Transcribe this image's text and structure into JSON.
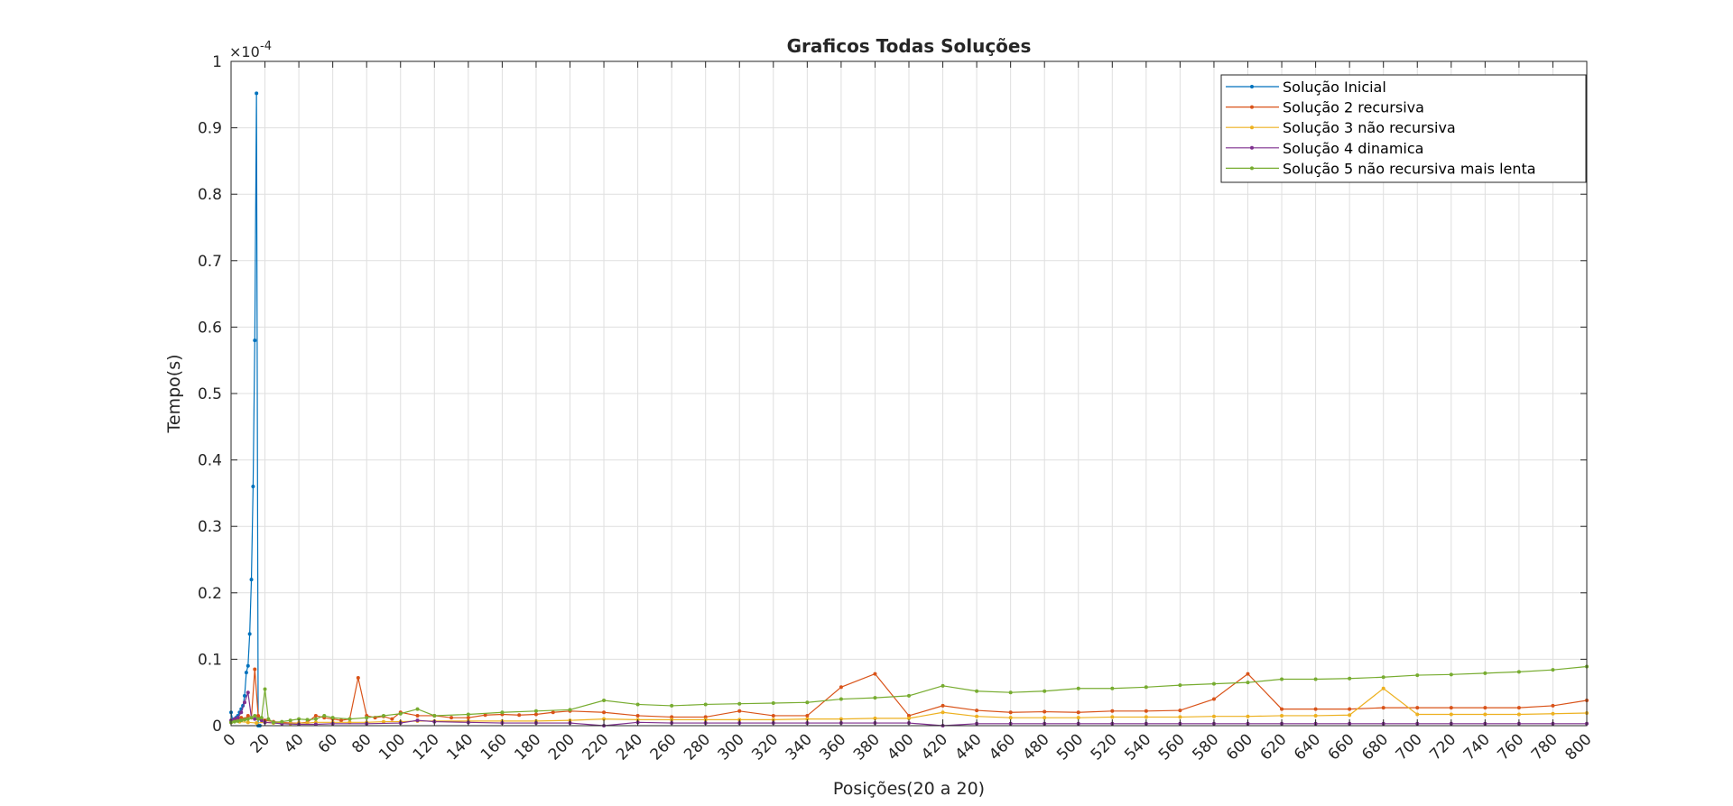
{
  "chart_data": {
    "type": "line",
    "title": "Graficos Todas Soluções",
    "xlabel": "Posições(20 a 20)",
    "ylabel": "Tempo(s)",
    "y_exponent_label": "×10",
    "y_exponent_power": "-4",
    "xlim": [
      0,
      800
    ],
    "ylim": [
      0,
      1
    ],
    "grid": true,
    "legend_position": "top-right",
    "x_ticks": [
      0,
      20,
      40,
      60,
      80,
      100,
      120,
      140,
      160,
      180,
      200,
      220,
      240,
      260,
      280,
      300,
      320,
      340,
      360,
      380,
      400,
      420,
      440,
      460,
      480,
      500,
      520,
      540,
      560,
      580,
      600,
      620,
      640,
      660,
      680,
      700,
      720,
      740,
      760,
      780,
      800
    ],
    "y_ticks": [
      0,
      0.1,
      0.2,
      0.3,
      0.4,
      0.5,
      0.6,
      0.7,
      0.8,
      0.9,
      1
    ],
    "y_tick_labels": [
      "0",
      "0.1",
      "0.2",
      "0.3",
      "0.4",
      "0.5",
      "0.6",
      "0.7",
      "0.8",
      "0.9",
      "1"
    ],
    "series": [
      {
        "name": "Solução Inicial",
        "color": "#0072BD",
        "x": [
          0,
          1,
          2,
          3,
          4,
          5,
          6,
          7,
          8,
          9,
          10,
          11,
          12,
          13,
          14,
          15,
          16,
          17
        ],
        "y": [
          0.02,
          0.008,
          0.01,
          0.012,
          0.015,
          0.02,
          0.025,
          0.03,
          0.045,
          0.08,
          0.09,
          0.138,
          0.22,
          0.36,
          0.58,
          0.952,
          0,
          0
        ]
      },
      {
        "name": "Solução 2 recursiva",
        "color": "#D95319",
        "x": [
          0,
          2,
          4,
          6,
          8,
          10,
          12,
          14,
          16,
          18,
          20,
          25,
          30,
          35,
          40,
          45,
          50,
          55,
          60,
          65,
          70,
          75,
          80,
          85,
          90,
          95,
          100,
          110,
          120,
          130,
          140,
          150,
          160,
          170,
          180,
          190,
          200,
          220,
          240,
          260,
          280,
          300,
          320,
          340,
          360,
          380,
          400,
          420,
          440,
          460,
          480,
          500,
          520,
          540,
          560,
          580,
          600,
          620,
          640,
          660,
          680,
          700,
          720,
          740,
          760,
          780,
          800
        ],
        "y": [
          0.005,
          0.008,
          0.01,
          0.012,
          0.01,
          0.015,
          0.012,
          0.085,
          0.015,
          0.01,
          0.008,
          0.006,
          0.005,
          0.004,
          0.004,
          0.005,
          0.015,
          0.012,
          0.01,
          0.008,
          0.01,
          0.072,
          0.015,
          0.012,
          0.014,
          0.01,
          0.02,
          0.015,
          0.015,
          0.012,
          0.012,
          0.016,
          0.017,
          0.016,
          0.017,
          0.02,
          0.022,
          0.02,
          0.015,
          0.013,
          0.013,
          0.022,
          0.015,
          0.015,
          0.058,
          0.078,
          0.015,
          0.03,
          0.023,
          0.02,
          0.021,
          0.02,
          0.022,
          0.022,
          0.023,
          0.04,
          0.078,
          0.025,
          0.025,
          0.025,
          0.027,
          0.027,
          0.027,
          0.027,
          0.027,
          0.03,
          0.038
        ]
      },
      {
        "name": "Solução 3 não recursiva",
        "color": "#EDB120",
        "x": [
          0,
          5,
          10,
          15,
          20,
          25,
          30,
          35,
          40,
          45,
          50,
          60,
          70,
          80,
          90,
          100,
          110,
          120,
          140,
          160,
          180,
          200,
          220,
          240,
          260,
          280,
          300,
          320,
          340,
          360,
          380,
          400,
          420,
          440,
          460,
          480,
          500,
          520,
          540,
          560,
          580,
          600,
          620,
          640,
          660,
          680,
          700,
          720,
          740,
          760,
          780,
          800
        ],
        "y": [
          0.005,
          0.006,
          0.005,
          0.004,
          0.005,
          0.004,
          0.004,
          0.003,
          0.004,
          0.004,
          0.005,
          0.005,
          0.005,
          0.005,
          0.006,
          0.006,
          0.007,
          0.007,
          0.007,
          0.007,
          0.007,
          0.008,
          0.01,
          0.009,
          0.009,
          0.009,
          0.009,
          0.009,
          0.01,
          0.01,
          0.011,
          0.011,
          0.02,
          0.014,
          0.012,
          0.012,
          0.012,
          0.013,
          0.013,
          0.013,
          0.014,
          0.014,
          0.015,
          0.015,
          0.016,
          0.056,
          0.017,
          0.017,
          0.017,
          0.017,
          0.018,
          0.019
        ]
      },
      {
        "name": "Solução 4 dinamica",
        "color": "#7E2F8E",
        "x": [
          0,
          2,
          4,
          6,
          8,
          10,
          12,
          14,
          16,
          18,
          20,
          30,
          40,
          50,
          60,
          80,
          100,
          110,
          120,
          140,
          160,
          180,
          200,
          220,
          240,
          260,
          280,
          300,
          320,
          340,
          360,
          380,
          400,
          420,
          440,
          460,
          480,
          500,
          520,
          540,
          560,
          580,
          600,
          620,
          640,
          660,
          680,
          700,
          720,
          740,
          760,
          780,
          800
        ],
        "y": [
          0.008,
          0.01,
          0.012,
          0.02,
          0.035,
          0.05,
          0.012,
          0.01,
          0.01,
          0.008,
          0.005,
          0.003,
          0.002,
          0.002,
          0.003,
          0.003,
          0.004,
          0.008,
          0.006,
          0.005,
          0.004,
          0.004,
          0.004,
          0,
          0.005,
          0.004,
          0.004,
          0.004,
          0.004,
          0.004,
          0.004,
          0.004,
          0.004,
          0,
          0.003,
          0.003,
          0.003,
          0.003,
          0.003,
          0.003,
          0.003,
          0.003,
          0.003,
          0.003,
          0.003,
          0.003,
          0.003,
          0.003,
          0.003,
          0.003,
          0.003,
          0.003,
          0.003
        ]
      },
      {
        "name": "Solução 5 não recursiva mais lenta",
        "color": "#77AC30",
        "x": [
          0,
          2,
          4,
          6,
          8,
          10,
          12,
          14,
          16,
          18,
          20,
          22,
          25,
          30,
          35,
          40,
          45,
          50,
          55,
          60,
          70,
          80,
          90,
          100,
          110,
          120,
          140,
          160,
          180,
          200,
          220,
          240,
          260,
          280,
          300,
          320,
          340,
          360,
          380,
          400,
          420,
          440,
          460,
          480,
          500,
          520,
          540,
          560,
          580,
          600,
          620,
          640,
          660,
          680,
          700,
          720,
          740,
          760,
          780,
          800
        ],
        "y": [
          0.005,
          0.006,
          0.007,
          0.008,
          0.009,
          0.01,
          0.012,
          0.015,
          0.01,
          0.012,
          0.055,
          0.01,
          0.005,
          0.006,
          0.008,
          0.01,
          0.009,
          0.01,
          0.015,
          0.012,
          0.01,
          0.012,
          0.015,
          0.018,
          0.025,
          0.015,
          0.017,
          0.02,
          0.022,
          0.024,
          0.038,
          0.032,
          0.03,
          0.032,
          0.033,
          0.034,
          0.035,
          0.04,
          0.042,
          0.045,
          0.06,
          0.052,
          0.05,
          0.052,
          0.056,
          0.056,
          0.058,
          0.061,
          0.063,
          0.065,
          0.07,
          0.07,
          0.071,
          0.073,
          0.076,
          0.077,
          0.079,
          0.081,
          0.084,
          0.089
        ]
      }
    ]
  }
}
